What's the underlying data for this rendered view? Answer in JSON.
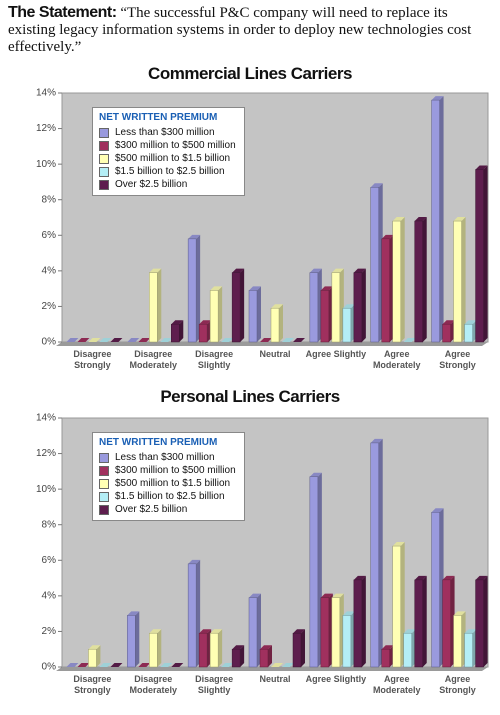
{
  "header": {
    "label": "The Statement:",
    "quote": "“The successful P&C company will need to replace its existing legacy information systems in order to deploy new technologies cost effectively.”"
  },
  "chart_data": [
    {
      "type": "bar",
      "title": "Commercial Lines Carriers",
      "legend_title": "NET WRITTEN PREMIUM",
      "legend": "upper left",
      "grid": false,
      "categories": [
        "Disagree Strongly",
        "Disagree Moderately",
        "Disagree Slightly",
        "Neutral",
        "Agree Slightly",
        "Agree Moderately",
        "Agree Strongly"
      ],
      "ylim": [
        0,
        14
      ],
      "yticks": [
        {
          "value": 0,
          "label": "0%"
        },
        {
          "value": 2,
          "label": "2%"
        },
        {
          "value": 4,
          "label": "4%"
        },
        {
          "value": 6,
          "label": "6%"
        },
        {
          "value": 8,
          "label": "8%"
        },
        {
          "value": 10,
          "label": "10%"
        },
        {
          "value": 12,
          "label": "12%"
        },
        {
          "value": 14,
          "label": "14%"
        }
      ],
      "series": [
        {
          "name": "Less than $300 million",
          "color": "#9a9ade",
          "values": [
            0,
            0,
            5.8,
            2.9,
            3.9,
            8.7,
            13.6
          ]
        },
        {
          "name": "$300 million to $500 million",
          "color": "#a0305e",
          "values": [
            0,
            0,
            1,
            0,
            2.9,
            5.8,
            1
          ]
        },
        {
          "name": "$500 million to $1.5 billion",
          "color": "#ffffb4",
          "values": [
            0,
            3.9,
            2.9,
            1.9,
            3.9,
            6.8,
            6.8
          ]
        },
        {
          "name": "$1.5 billion to $2.5 billion",
          "color": "#b4eef6",
          "values": [
            0,
            0,
            0,
            0,
            1.9,
            0,
            1
          ]
        },
        {
          "name": "Over $2.5 billion",
          "color": "#5e1e4e",
          "values": [
            0,
            1,
            3.9,
            0,
            3.9,
            6.8,
            9.7
          ]
        }
      ]
    },
    {
      "type": "bar",
      "title": "Personal Lines Carriers",
      "legend_title": "NET WRITTEN PREMIUM",
      "legend": "upper left",
      "grid": false,
      "categories": [
        "Disagree Strongly",
        "Disagree Moderately",
        "Disagree Slightly",
        "Neutral",
        "Agree Slightly",
        "Agree Moderately",
        "Agree Strongly"
      ],
      "ylim": [
        0,
        14
      ],
      "yticks": [
        {
          "value": 0,
          "label": "0%"
        },
        {
          "value": 2,
          "label": "2%"
        },
        {
          "value": 4,
          "label": "4%"
        },
        {
          "value": 6,
          "label": "6%"
        },
        {
          "value": 8,
          "label": "8%"
        },
        {
          "value": 10,
          "label": "10%"
        },
        {
          "value": 12,
          "label": "12%"
        },
        {
          "value": 14,
          "label": "14%"
        }
      ],
      "series": [
        {
          "name": "Less than $300 million",
          "color": "#9a9ade",
          "values": [
            0,
            2.9,
            5.8,
            3.9,
            10.7,
            12.6,
            8.7
          ]
        },
        {
          "name": "$300 million to $500 million",
          "color": "#a0305e",
          "values": [
            0,
            0,
            1.9,
            1,
            3.9,
            1,
            4.9
          ]
        },
        {
          "name": "$500 million to $1.5 billion",
          "color": "#ffffb4",
          "values": [
            1,
            1.9,
            1.9,
            0,
            3.9,
            6.8,
            2.9
          ]
        },
        {
          "name": "$1.5 billion to $2.5 billion",
          "color": "#b4eef6",
          "values": [
            0,
            0,
            0,
            0,
            2.9,
            1.9,
            1.9
          ]
        },
        {
          "name": "Over $2.5 billion",
          "color": "#5e1e4e",
          "values": [
            0,
            0,
            1,
            1.9,
            4.9,
            4.9,
            4.9
          ]
        }
      ]
    }
  ]
}
